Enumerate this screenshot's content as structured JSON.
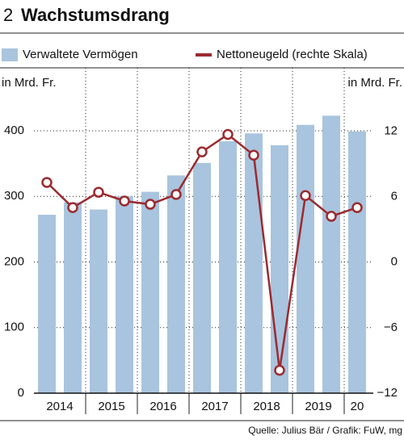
{
  "figure_number": "2",
  "chart_data": {
    "type": "bar_line",
    "title": "Wachstumsdrang",
    "y_label": "in Mrd. Fr.",
    "y2_label": "in Mrd. Fr.",
    "categories": [
      "2014",
      null,
      "2015",
      null,
      "2016",
      null,
      "2017",
      null,
      "2018",
      null,
      "2019",
      null,
      "20"
    ],
    "series": [
      {
        "name": "Verwaltete Vermögen",
        "type": "bar",
        "color": "#a9c4de",
        "values": [
          272,
          291,
          280,
          300,
          307,
          332,
          351,
          384,
          396,
          378,
          409,
          423,
          399
        ]
      },
      {
        "name": "Nettoneugeld (rechte Skala)",
        "type": "line",
        "axis": "y2",
        "color": "#9b2a2f",
        "values": [
          7.3,
          5.0,
          6.4,
          5.6,
          5.3,
          6.2,
          10.1,
          11.7,
          9.8,
          -9.9,
          6.1,
          4.2,
          5.0
        ]
      }
    ],
    "ylim": [
      0,
      496
    ],
    "yticks": [
      0,
      100,
      200,
      300,
      400
    ],
    "y2lim": [
      -12,
      17.8
    ],
    "y2ticks": [
      {
        "value": -12,
        "label": "−12"
      },
      {
        "value": -6,
        "label": "−6"
      },
      0,
      6,
      12
    ],
    "grid": true,
    "source": "Quelle: Julius Bär / Grafik: FuW, mg"
  }
}
